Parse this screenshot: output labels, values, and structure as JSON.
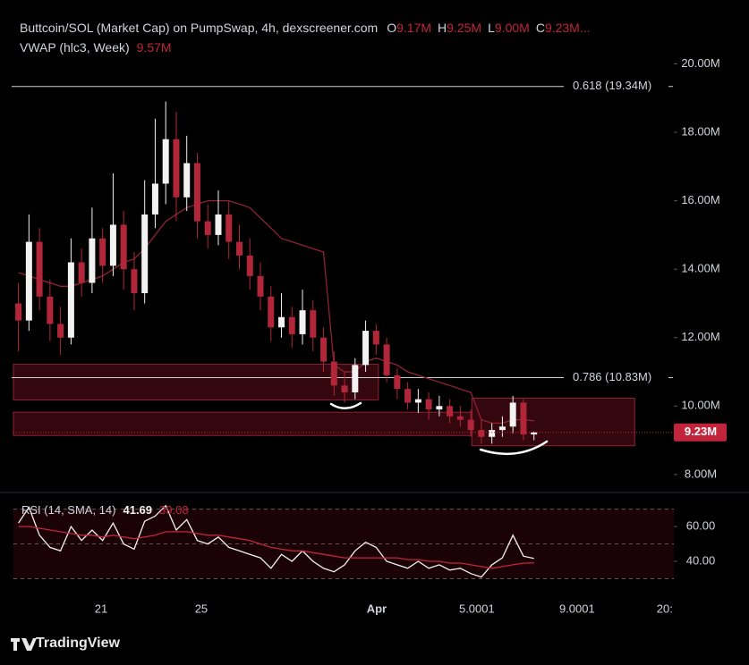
{
  "chart_data": [
    {
      "type": "candlestick",
      "title": "Buttcoin/SOL (Market Cap) on PumpSwap, 4h, dexscreener.com",
      "ohlc_legend": [
        {
          "key": "O",
          "value": 9.17,
          "label": "9.17M"
        },
        {
          "key": "H",
          "value": 9.25,
          "label": "9.25M"
        },
        {
          "key": "L",
          "value": 9.0,
          "label": "9.00M"
        },
        {
          "key": "C",
          "value": 9.23,
          "label": "9.23M..."
        }
      ],
      "x": [
        17.7,
        18.12,
        18.54,
        18.96,
        19.38,
        19.8,
        20.22,
        20.64,
        21.06,
        21.48,
        21.9,
        22.32,
        22.74,
        23.16,
        23.58,
        24.0,
        24.42,
        24.84,
        25.26,
        25.68,
        26.1,
        26.52,
        26.94,
        27.36,
        27.78,
        28.2,
        28.62,
        29.04,
        29.46,
        29.88,
        30.3,
        30.72,
        31.14,
        31.56,
        31.98,
        32.4,
        32.82,
        33.24,
        33.66,
        34.08,
        34.5,
        34.92,
        35.34,
        35.76,
        36.18,
        36.6,
        37.02,
        37.44,
        37.86,
        38.28
      ],
      "open": [
        13.0,
        12.5,
        14.8,
        13.2,
        12.4,
        12.0,
        14.2,
        13.6,
        14.9,
        14.1,
        15.3,
        14.0,
        13.3,
        15.6,
        16.5,
        17.8,
        16.1,
        17.1,
        15.4,
        15.0,
        15.6,
        14.8,
        14.4,
        13.8,
        13.2,
        12.3,
        12.6,
        12.1,
        12.8,
        12.0,
        11.3,
        10.6,
        10.4,
        11.2,
        12.2,
        11.8,
        10.9,
        10.5,
        10.1,
        10.2,
        9.9,
        10.0,
        9.7,
        9.6,
        9.3,
        9.1,
        9.3,
        9.4,
        10.1,
        9.17
      ],
      "high": [
        13.6,
        15.6,
        15.2,
        13.7,
        12.9,
        14.9,
        14.6,
        15.8,
        15.2,
        16.8,
        15.7,
        14.5,
        16.6,
        18.4,
        18.9,
        18.6,
        17.9,
        17.4,
        15.9,
        16.3,
        16.0,
        15.3,
        14.9,
        14.2,
        13.5,
        13.3,
        12.9,
        13.4,
        13.1,
        12.3,
        11.6,
        11.0,
        11.4,
        12.5,
        12.4,
        12.0,
        11.1,
        10.7,
        10.5,
        10.4,
        10.3,
        10.2,
        10.0,
        9.9,
        9.6,
        9.5,
        9.7,
        10.3,
        10.2,
        9.25
      ],
      "low": [
        11.6,
        12.2,
        12.8,
        11.9,
        11.5,
        11.8,
        13.2,
        13.3,
        13.6,
        13.8,
        13.4,
        12.8,
        13.0,
        15.2,
        15.9,
        15.4,
        15.7,
        14.9,
        14.6,
        14.7,
        14.3,
        14.0,
        13.4,
        12.8,
        11.9,
        12.0,
        11.7,
        11.8,
        11.6,
        11.0,
        10.3,
        10.1,
        10.2,
        11.0,
        11.5,
        10.7,
        10.2,
        9.9,
        9.8,
        9.6,
        9.7,
        9.5,
        9.4,
        9.1,
        8.9,
        8.9,
        9.1,
        9.2,
        9.0,
        9.0
      ],
      "close": [
        12.5,
        14.8,
        13.2,
        12.4,
        12.0,
        14.2,
        13.6,
        14.9,
        14.1,
        15.3,
        14.0,
        13.3,
        15.6,
        16.5,
        17.8,
        16.1,
        17.1,
        15.4,
        15.0,
        15.6,
        14.8,
        14.4,
        13.8,
        13.2,
        12.3,
        12.6,
        12.1,
        12.8,
        12.0,
        11.3,
        10.6,
        10.4,
        11.2,
        12.2,
        11.8,
        10.9,
        10.5,
        10.1,
        10.2,
        9.9,
        10.0,
        9.7,
        9.6,
        9.3,
        9.1,
        9.3,
        9.4,
        10.1,
        9.17,
        9.23
      ],
      "up_color": "#f2f2f2",
      "down_color": "#b2263a",
      "indicators": [
        {
          "label": "VWAP (hlc3, Week)",
          "color": "#8e2236",
          "values": [
            13.9,
            13.8,
            13.7,
            13.6,
            13.5,
            13.5,
            13.6,
            13.7,
            13.8,
            14.0,
            14.2,
            14.3,
            14.6,
            15.0,
            15.4,
            15.6,
            15.8,
            15.9,
            16.0,
            16.0,
            16.0,
            15.9,
            15.8,
            15.5,
            15.2,
            14.9,
            14.8,
            14.7,
            14.6,
            14.5,
            11.2,
            11.0,
            11.0,
            11.3,
            11.4,
            11.3,
            11.2,
            11.0,
            10.9,
            10.8,
            10.7,
            10.6,
            10.5,
            10.4,
            9.6,
            9.5,
            9.5,
            9.6,
            9.6,
            9.57
          ],
          "last": {
            "value": 9.57,
            "label": "9.57M"
          }
        }
      ],
      "levels": [
        {
          "value": 19.34,
          "label": "0.618 (19.34M)"
        },
        {
          "value": 10.83,
          "label": "0.786 (10.83M)"
        }
      ],
      "zones": [
        {
          "x": [
            17.5,
            32.07
          ],
          "y": [
            10.18,
            11.22
          ]
        },
        {
          "x": [
            17.5,
            35.8
          ],
          "y": [
            9.14,
            9.82
          ]
        },
        {
          "x": [
            35.8,
            42.3
          ],
          "y": [
            8.84,
            10.23
          ]
        }
      ],
      "last_price": {
        "value": 9.23,
        "label": "9.23M",
        "color": "#c2253b"
      },
      "xlim": [
        17.5,
        43.9
      ],
      "ylim": [
        7.5,
        20.3
      ],
      "yticks": [
        {
          "value": 8,
          "label": "8.00M"
        },
        {
          "value": 10,
          "label": "10.00M"
        },
        {
          "value": 12,
          "label": "12.00M"
        },
        {
          "value": 14,
          "label": "14.00M"
        },
        {
          "value": 16,
          "label": "16.00M"
        },
        {
          "value": 18,
          "label": "18.00M"
        },
        {
          "value": 20,
          "label": "20.00M"
        }
      ],
      "grid": false
    },
    {
      "type": "line",
      "title": "RSI (14, SMA, 14)",
      "x": [
        17.7,
        18.12,
        18.54,
        18.96,
        19.38,
        19.8,
        20.22,
        20.64,
        21.06,
        21.48,
        21.9,
        22.32,
        22.74,
        23.16,
        23.58,
        24.0,
        24.42,
        24.84,
        25.26,
        25.68,
        26.1,
        26.52,
        26.94,
        27.36,
        27.78,
        28.2,
        28.62,
        29.04,
        29.46,
        29.88,
        30.3,
        30.72,
        31.14,
        31.56,
        31.98,
        32.4,
        32.82,
        33.24,
        33.66,
        34.08,
        34.5,
        34.92,
        35.34,
        35.76,
        36.18,
        36.6,
        37.02,
        37.44,
        37.86,
        38.28
      ],
      "series": [
        {
          "color": "#f2f2f2",
          "values": [
            62,
            71,
            55,
            48,
            46,
            60,
            52,
            58,
            52,
            62,
            50,
            47,
            63,
            66,
            72,
            58,
            64,
            52,
            50,
            54,
            48,
            46,
            44,
            42,
            36,
            44,
            40,
            46,
            40,
            36,
            34,
            38,
            46,
            51,
            48,
            40,
            38,
            36,
            40,
            36,
            38,
            35,
            36,
            33,
            31,
            38,
            42,
            55,
            43,
            41.69
          ]
        },
        {
          "color": "#c2253b",
          "values": [
            60,
            60,
            59,
            58,
            57,
            56,
            55,
            55,
            54,
            55,
            54,
            53,
            54,
            55,
            57,
            57,
            57,
            56,
            55,
            55,
            54,
            53,
            52,
            50,
            48,
            47,
            46,
            46,
            45,
            44,
            43,
            42,
            42,
            42,
            42,
            42,
            42,
            41,
            41,
            40,
            40,
            39,
            39,
            38,
            37,
            36,
            37,
            38,
            39,
            39.08
          ]
        }
      ],
      "legend_values": [
        {
          "value": 41.69,
          "color": "#f2f2f2"
        },
        {
          "value": 39.08,
          "color": "#c2253b"
        }
      ],
      "band_lines": [
        70,
        50,
        30
      ],
      "xlim": [
        17.5,
        43.9
      ],
      "ylim": [
        19.5,
        78.5
      ],
      "yticks": [
        {
          "value": 40,
          "label": "40.00"
        },
        {
          "value": 60,
          "label": "60.00"
        }
      ],
      "xticks": [
        21,
        25,
        {
          "value": 32,
          "label": "Apr"
        },
        5.0001,
        9.0001,
        {
          "value": 43.5,
          "label": "20:"
        }
      ]
    }
  ],
  "footer": {
    "brand": "TradingView"
  }
}
